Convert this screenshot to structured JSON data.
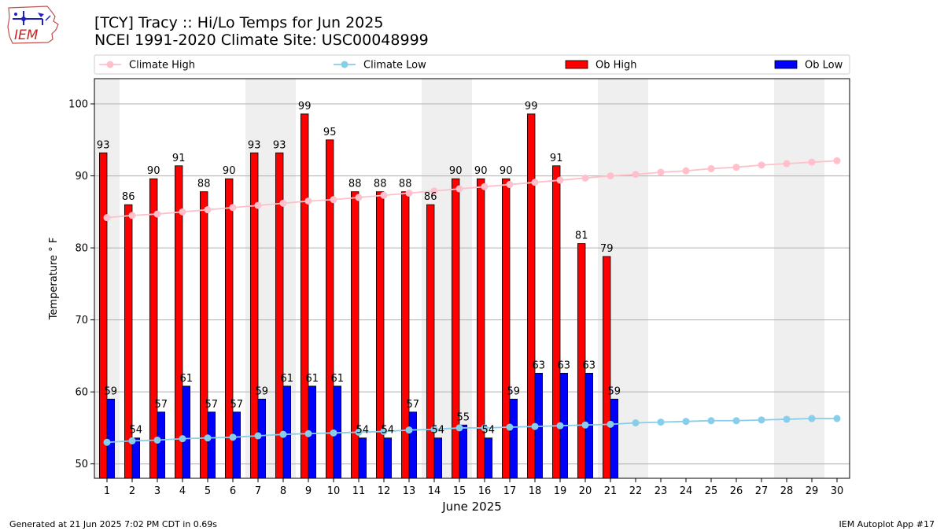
{
  "header": {
    "title_line1": "[TCY] Tracy :: Hi/Lo Temps for Jun 2025",
    "title_line2": "NCEI 1991-2020 Climate Site: USC00048999"
  },
  "logo": {
    "text": "IEM",
    "icon": "iem-iowa-logo"
  },
  "footer": {
    "generated": "Generated at 21 Jun 2025 7:02 PM CDT in 0.69s",
    "app": "IEM Autoplot App #17"
  },
  "colors": {
    "ob_high": "#ff0000",
    "ob_low": "#0000ff",
    "climate_high": "#ffc0cb",
    "climate_low": "#87ceeb",
    "weekend_band": "#efefef",
    "grid": "#b0b0b0"
  },
  "chart_data": {
    "type": "bar",
    "xlabel": "June 2025",
    "ylabel": "Temperature ° F",
    "xlim": [
      0.5,
      30.5
    ],
    "ylim": [
      48,
      103.5
    ],
    "yticks": [
      50,
      60,
      70,
      80,
      90,
      100
    ],
    "grid": "horizontal",
    "legend": {
      "placement": "top",
      "entries": [
        {
          "name": "Climate High",
          "marker": "line"
        },
        {
          "name": "Climate Low",
          "marker": "line"
        },
        {
          "name": "Ob High",
          "marker": "patch"
        },
        {
          "name": "Ob Low",
          "marker": "patch"
        }
      ]
    },
    "weekend_days": [
      1,
      7,
      8,
      14,
      15,
      21,
      22,
      28,
      29
    ],
    "days": [
      1,
      2,
      3,
      4,
      5,
      6,
      7,
      8,
      9,
      10,
      11,
      12,
      13,
      14,
      15,
      16,
      17,
      18,
      19,
      20,
      21,
      22,
      23,
      24,
      25,
      26,
      27,
      28,
      29,
      30
    ],
    "ob_high": {
      "name": "Ob High",
      "days": [
        1,
        2,
        3,
        4,
        5,
        6,
        7,
        8,
        9,
        10,
        11,
        12,
        13,
        14,
        15,
        16,
        17,
        18,
        19,
        20,
        21
      ],
      "values": [
        93,
        86,
        90,
        91,
        88,
        90,
        93,
        93,
        99,
        95,
        88,
        88,
        88,
        86,
        90,
        90,
        90,
        99,
        91,
        81,
        79
      ],
      "heights": [
        93.2,
        86.0,
        89.6,
        91.4,
        87.8,
        89.6,
        93.2,
        93.2,
        98.6,
        95.0,
        87.8,
        87.8,
        87.8,
        86.0,
        89.6,
        89.6,
        89.6,
        98.6,
        91.4,
        80.6,
        78.8
      ]
    },
    "ob_low": {
      "name": "Ob Low",
      "days": [
        1,
        2,
        3,
        4,
        5,
        6,
        7,
        8,
        9,
        10,
        11,
        12,
        13,
        14,
        15,
        16,
        17,
        18,
        19,
        20,
        21
      ],
      "values": [
        59,
        54,
        57,
        61,
        57,
        57,
        59,
        61,
        61,
        61,
        54,
        54,
        57,
        54,
        55,
        54,
        59,
        63,
        63,
        63,
        59
      ],
      "heights": [
        59.0,
        53.6,
        57.2,
        60.8,
        57.2,
        57.2,
        59.0,
        60.8,
        60.8,
        60.8,
        53.6,
        53.6,
        57.2,
        53.6,
        55.4,
        53.6,
        59.0,
        62.6,
        62.6,
        62.6,
        59.0
      ]
    },
    "climate_high": {
      "name": "Climate High",
      "values": [
        84.2,
        84.5,
        84.7,
        85.0,
        85.3,
        85.6,
        85.9,
        86.2,
        86.5,
        86.7,
        87.0,
        87.3,
        87.6,
        87.9,
        88.2,
        88.5,
        88.8,
        89.1,
        89.4,
        89.7,
        90.0,
        90.2,
        90.5,
        90.7,
        91.0,
        91.2,
        91.5,
        91.7,
        91.9,
        92.1
      ]
    },
    "climate_low": {
      "name": "Climate Low",
      "values": [
        53.0,
        53.2,
        53.3,
        53.5,
        53.6,
        53.7,
        53.9,
        54.1,
        54.2,
        54.3,
        54.4,
        54.5,
        54.7,
        54.8,
        55.0,
        55.0,
        55.1,
        55.2,
        55.3,
        55.4,
        55.5,
        55.7,
        55.8,
        55.9,
        56.0,
        56.0,
        56.1,
        56.2,
        56.3,
        56.3
      ]
    }
  }
}
